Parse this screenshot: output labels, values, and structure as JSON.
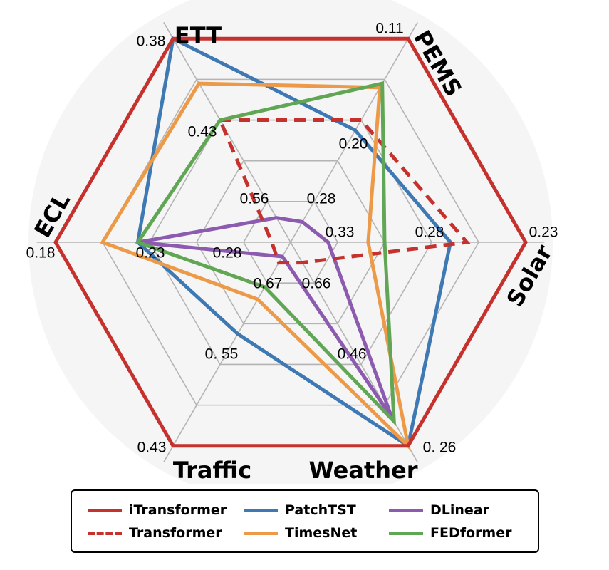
{
  "chart_data": {
    "type": "radar",
    "axes": [
      {
        "name": "ETT",
        "ticks": [
          "0.38",
          "0.43",
          "0.56"
        ]
      },
      {
        "name": "PEMS",
        "ticks": [
          "0.11",
          "0.20",
          "0.28"
        ]
      },
      {
        "name": "Solar",
        "ticks": [
          "0.23",
          "0.28",
          "0.33"
        ]
      },
      {
        "name": "Weather",
        "ticks": [
          "0. 26",
          "0.46",
          "0.66"
        ]
      },
      {
        "name": "Traffic",
        "ticks": [
          "0.43",
          "0. 55",
          "0.67"
        ]
      },
      {
        "name": "ECL",
        "ticks": [
          "0.18",
          "0.23",
          "0.28"
        ]
      }
    ],
    "series": [
      {
        "name": "iTransformer",
        "color": "#c5312d",
        "dash": false,
        "values": [
          1.0,
          1.0,
          1.0,
          1.0,
          1.0,
          1.0
        ]
      },
      {
        "name": "PatchTST",
        "color": "#3f79b4",
        "dash": false,
        "values": [
          1.0,
          0.55,
          0.68,
          1.0,
          0.45,
          0.65
        ]
      },
      {
        "name": "DLinear",
        "color": "#8c5bb0",
        "dash": false,
        "values": [
          0.12,
          0.1,
          0.16,
          0.86,
          0.07,
          0.65
        ]
      },
      {
        "name": "Transformer",
        "color": "#c5312d",
        "dash": true,
        "values": [
          0.6,
          0.6,
          0.75,
          0.1,
          0.1,
          0.08
        ]
      },
      {
        "name": "TimesNet",
        "color": "#ec9a48",
        "dash": false,
        "values": [
          0.78,
          0.76,
          0.33,
          1.0,
          0.28,
          0.8
        ]
      },
      {
        "name": "FEDformer",
        "color": "#60a654",
        "dash": false,
        "values": [
          0.6,
          0.78,
          0.4,
          0.88,
          0.22,
          0.65
        ]
      }
    ],
    "legend_order": [
      "iTransformer",
      "PatchTST",
      "DLinear",
      "Transformer",
      "TimesNet",
      "FEDformer"
    ]
  }
}
